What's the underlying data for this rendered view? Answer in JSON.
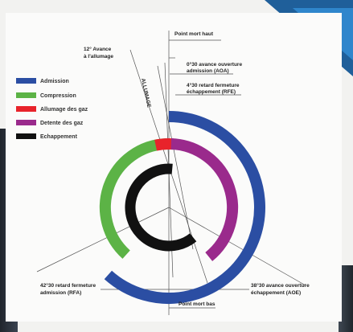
{
  "legend": [
    {
      "label": "Admission",
      "color": "#2b4ea3"
    },
    {
      "label": "Compression",
      "color": "#5cb346"
    },
    {
      "label": "Allumage des gaz",
      "color": "#e8232b"
    },
    {
      "label": "Detente des gaz",
      "color": "#9a2a8c"
    },
    {
      "label": "Echappement",
      "color": "#111111"
    }
  ],
  "labels": {
    "tdc": "Point mort haut",
    "bdc": "Point mort bas",
    "ignition_1": "12° Avance",
    "ignition_2": "à l'allumage",
    "aoa_1": "0°30 avance ouverture",
    "aoa_2": "admission (AOA)",
    "rfe_1": "4°30 retard fermeture",
    "rfe_2": "échappement (RFE)",
    "rfa_1": "42°30 retard fermeture",
    "rfa_2": "admission (RFA)",
    "aoe_1": "38°30 avance ouverture",
    "aoe_2": "échappement (AOE)",
    "spark": "ALLUMAGE"
  }
}
